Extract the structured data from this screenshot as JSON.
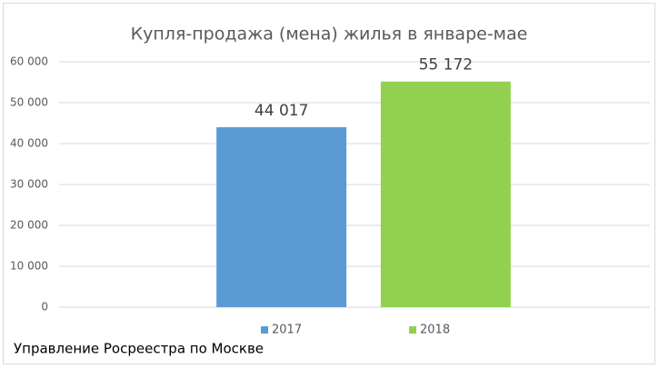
{
  "chart_data": {
    "type": "bar",
    "title": "Купля-продажа (мена) жилья в январе-мае",
    "categories": [
      null
    ],
    "series": [
      {
        "name": "2017",
        "color": "#5b9bd5",
        "values": [
          44017
        ],
        "value_labels": [
          "44 017"
        ]
      },
      {
        "name": "2018",
        "color": "#92d050",
        "values": [
          55172
        ],
        "value_labels": [
          "55 172"
        ]
      }
    ],
    "ylim": [
      0,
      60000
    ],
    "yticks": [
      0,
      {
        "value": 10000,
        "label": "10 000"
      },
      {
        "value": 20000,
        "label": "20 000"
      },
      {
        "value": 30000,
        "label": "30 000"
      },
      {
        "value": 40000,
        "label": "40 000"
      },
      {
        "value": 50000,
        "label": "50 000"
      },
      {
        "value": 60000,
        "label": "60 000"
      }
    ],
    "grid": true,
    "legend": "bottom",
    "source": "Управление Росреестра по Москве"
  }
}
